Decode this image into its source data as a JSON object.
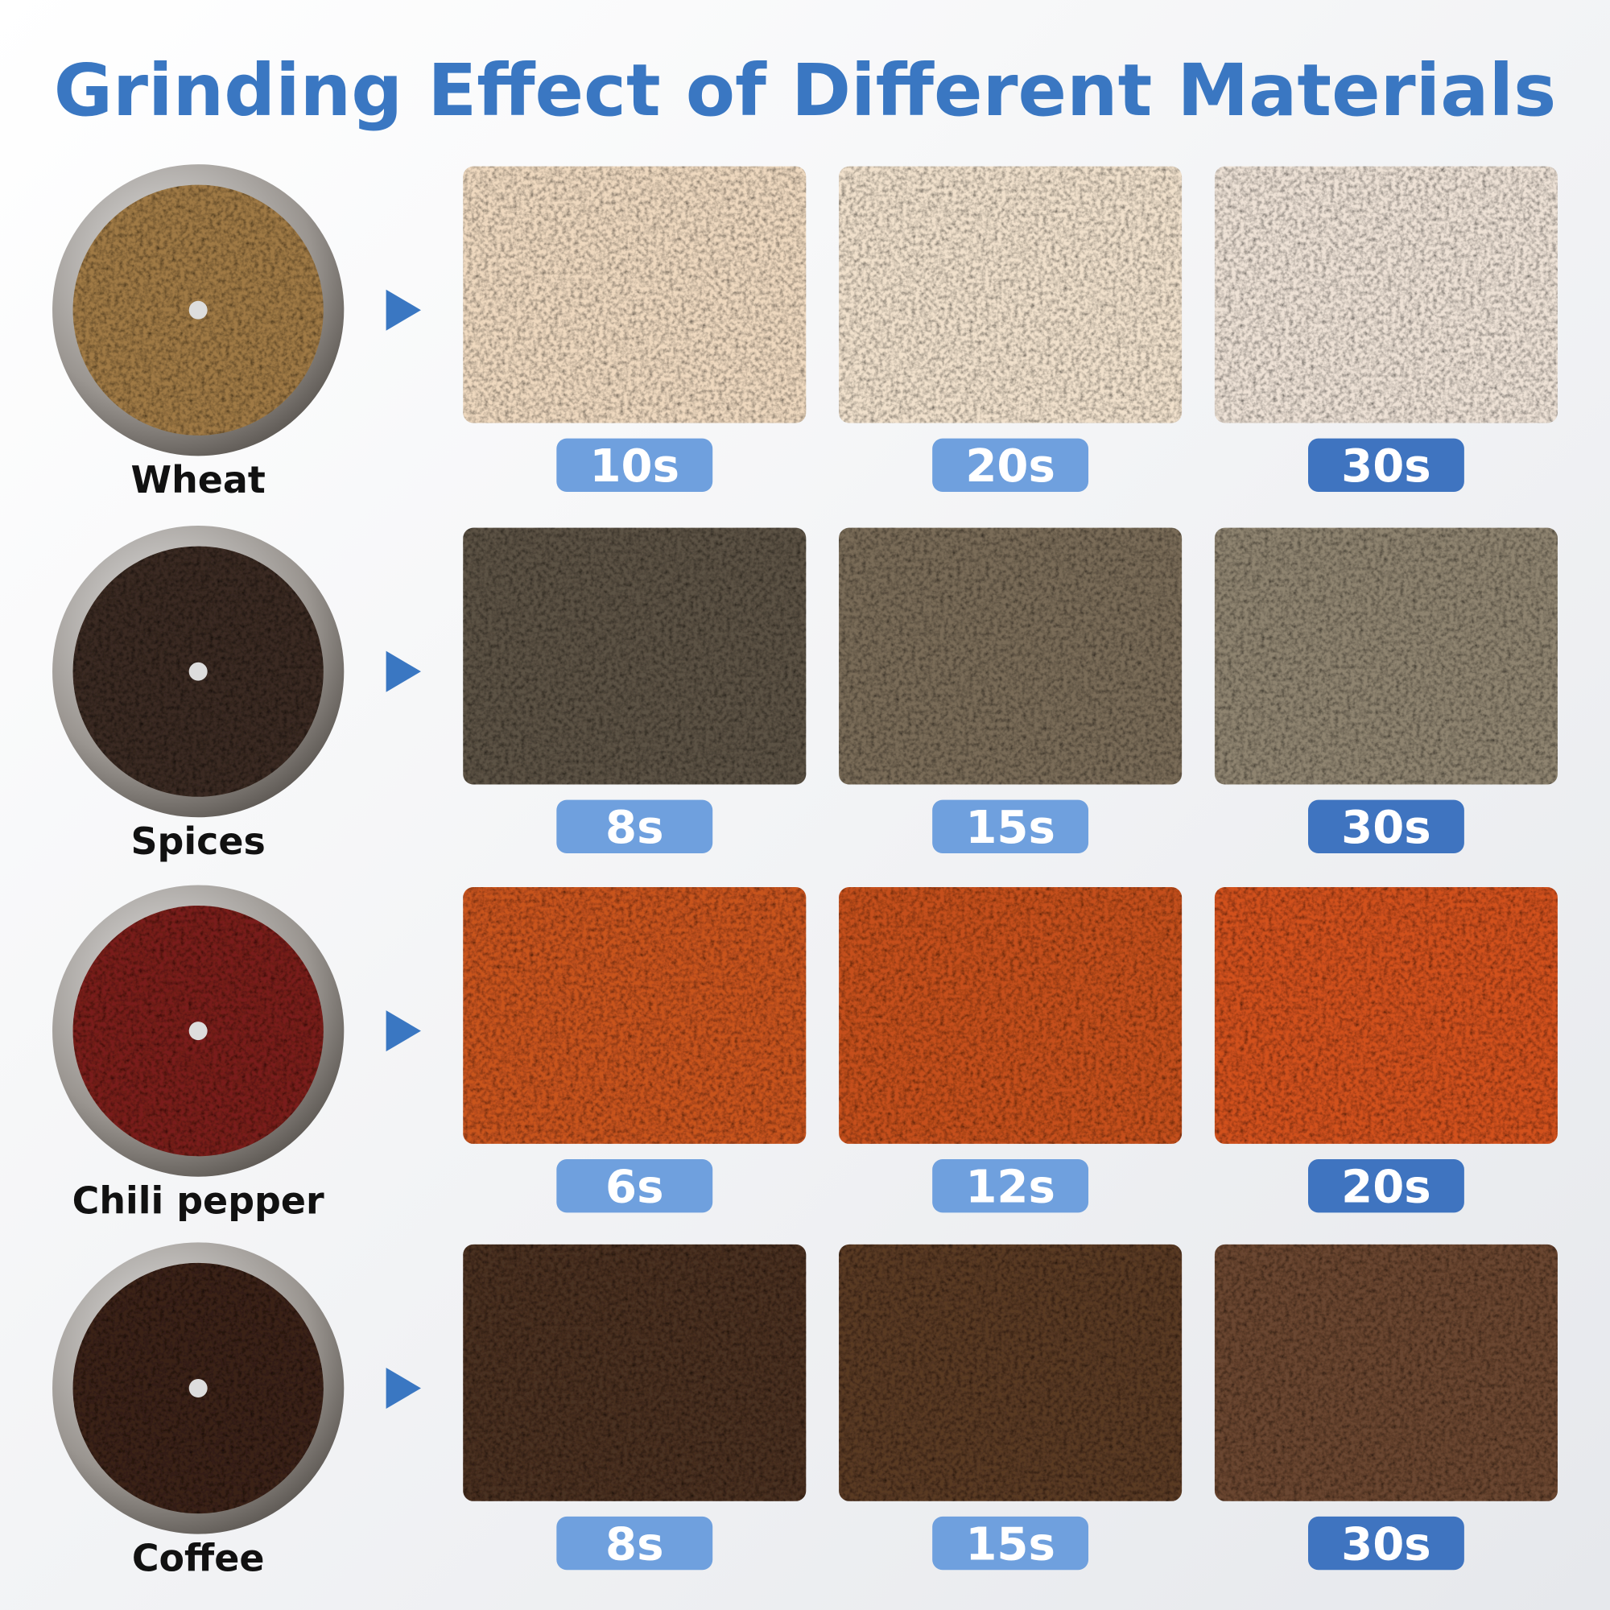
{
  "title": "Grinding Effect of Different Materials",
  "rows": [
    {
      "name": "Wheat",
      "times": [
        "10s",
        "20s",
        "30s"
      ]
    },
    {
      "name": "Spices",
      "times": [
        "8s",
        "15s",
        "30s"
      ]
    },
    {
      "name": "Chili pepper",
      "times": [
        "6s",
        "12s",
        "20s"
      ]
    },
    {
      "name": "Coffee",
      "times": [
        "8s",
        "15s",
        "30s"
      ]
    }
  ]
}
